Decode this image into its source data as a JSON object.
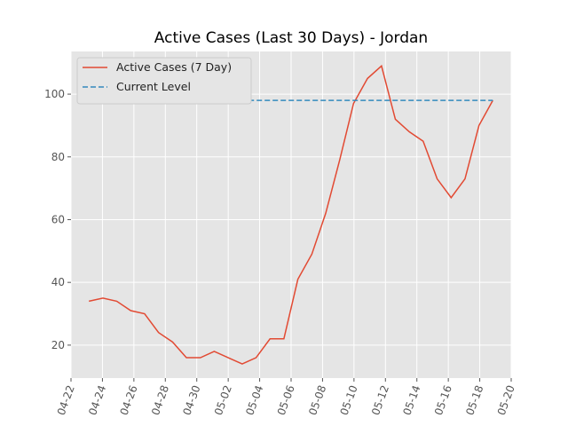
{
  "chart_data": {
    "type": "line",
    "title": "Active Cases (Last 30 Days) - Jordan",
    "series": [
      {
        "name": "Active Cases (7 Day)",
        "color": "#e24a33",
        "dash": "solid",
        "x": [
          1.14,
          2.03,
          2.91,
          3.8,
          4.68,
          5.57,
          6.46,
          7.34,
          8.23,
          9.11,
          10.0,
          10.89,
          11.77,
          12.66,
          13.54,
          14.43,
          15.32,
          16.2,
          17.09,
          17.97,
          18.86,
          19.75,
          20.63,
          21.52,
          22.4,
          23.29,
          24.18,
          25.06,
          25.95,
          26.83
        ],
        "values": [
          34,
          35,
          34,
          31,
          30,
          24,
          21,
          16,
          16,
          18,
          16,
          14,
          16,
          22,
          22,
          41,
          49,
          62,
          79,
          97,
          105,
          109,
          92,
          88,
          85,
          73,
          67,
          73,
          90,
          98
        ]
      },
      {
        "name": "Current Level",
        "color": "#348abd",
        "dash": "dashed",
        "x": [
          1.14,
          26.83
        ],
        "values": [
          98,
          98
        ]
      }
    ],
    "xlim": [
      0,
      28
    ],
    "xticks": [
      {
        "value": 0,
        "label": "04-22"
      },
      {
        "value": 2,
        "label": "04-24"
      },
      {
        "value": 4,
        "label": "04-26"
      },
      {
        "value": 6,
        "label": "04-28"
      },
      {
        "value": 8,
        "label": "04-30"
      },
      {
        "value": 10,
        "label": "05-02"
      },
      {
        "value": 12,
        "label": "05-04"
      },
      {
        "value": 14,
        "label": "05-06"
      },
      {
        "value": 16,
        "label": "05-08"
      },
      {
        "value": 18,
        "label": "05-10"
      },
      {
        "value": 20,
        "label": "05-12"
      },
      {
        "value": 22,
        "label": "05-14"
      },
      {
        "value": 24,
        "label": "05-16"
      },
      {
        "value": 26,
        "label": "05-18"
      },
      {
        "value": 28,
        "label": "05-20"
      }
    ],
    "ylim": [
      9.5,
      113.6
    ],
    "yticks": [
      20,
      40,
      60,
      80,
      100
    ],
    "grid": true,
    "legend": "upper-left"
  }
}
